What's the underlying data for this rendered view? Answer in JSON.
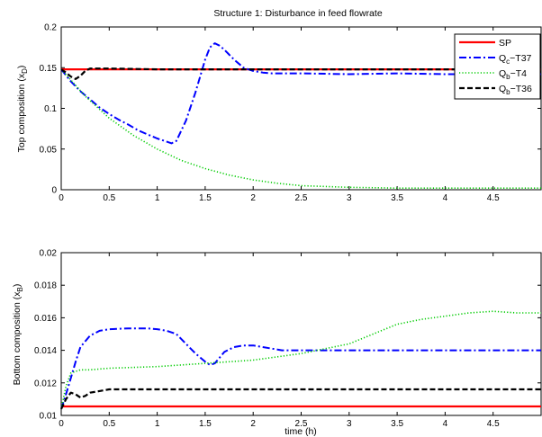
{
  "chart_data": [
    {
      "type": "line",
      "title": "Structure 1: Disturbance in feed flowrate",
      "xlabel": "",
      "ylabel": "Top composition (x_D)",
      "xlim": [
        0,
        5
      ],
      "ylim": [
        0,
        0.2
      ],
      "xticks": [
        "0",
        "0.5",
        "1",
        "1.5",
        "2",
        "2.5",
        "3",
        "3.5",
        "4",
        "4.5"
      ],
      "yticks": [
        "0",
        "0.05",
        "0.1",
        "0.15",
        "0.2"
      ],
      "grid": false,
      "legend_position": "top-right",
      "series": [
        {
          "name": "SP",
          "color": "#ff0000",
          "style": "solid",
          "x": [
            0,
            5
          ],
          "y": [
            0.148,
            0.148
          ]
        },
        {
          "name": "Q_c-T37",
          "color": "#0000ff",
          "style": "dashdot",
          "x": [
            0,
            0.1,
            0.2,
            0.3,
            0.4,
            0.5,
            0.6,
            0.7,
            0.8,
            0.9,
            1.0,
            1.1,
            1.15,
            1.2,
            1.3,
            1.4,
            1.5,
            1.55,
            1.6,
            1.65,
            1.7,
            1.8,
            1.9,
            2.0,
            2.1,
            2.2,
            2.5,
            3.0,
            3.5,
            4.0,
            4.5,
            5.0
          ],
          "y": [
            0.148,
            0.133,
            0.121,
            0.111,
            0.101,
            0.093,
            0.086,
            0.08,
            0.073,
            0.068,
            0.063,
            0.059,
            0.057,
            0.06,
            0.085,
            0.12,
            0.16,
            0.175,
            0.18,
            0.177,
            0.172,
            0.16,
            0.15,
            0.146,
            0.144,
            0.143,
            0.143,
            0.142,
            0.143,
            0.142,
            0.142,
            0.142
          ]
        },
        {
          "name": "Q_b-T4",
          "color": "#00cc00",
          "style": "dotted",
          "x": [
            0,
            0.25,
            0.5,
            0.75,
            1.0,
            1.25,
            1.5,
            1.75,
            2.0,
            2.25,
            2.5,
            2.75,
            3.0,
            3.5,
            4.0,
            4.5,
            5.0
          ],
          "y": [
            0.148,
            0.115,
            0.088,
            0.067,
            0.05,
            0.036,
            0.026,
            0.018,
            0.012,
            0.008,
            0.005,
            0.004,
            0.003,
            0.002,
            0.002,
            0.002,
            0.002
          ]
        },
        {
          "name": "Q_b-T36",
          "color": "#000000",
          "style": "dashed",
          "x": [
            0,
            0.05,
            0.1,
            0.15,
            0.2,
            0.25,
            0.3,
            0.5,
            1.0,
            1.5,
            2.0,
            2.5,
            3.0,
            3.5,
            4.0,
            4.5,
            5.0
          ],
          "y": [
            0.148,
            0.144,
            0.139,
            0.136,
            0.14,
            0.146,
            0.149,
            0.149,
            0.148,
            0.148,
            0.148,
            0.148,
            0.148,
            0.148,
            0.148,
            0.148,
            0.148
          ]
        }
      ]
    },
    {
      "type": "line",
      "title": "",
      "xlabel": "time (h)",
      "ylabel": "Bottom composition (x_B)",
      "xlim": [
        0,
        5
      ],
      "ylim": [
        0.01,
        0.02
      ],
      "xticks": [
        "0",
        "0.5",
        "1",
        "1.5",
        "2",
        "2.5",
        "3",
        "3.5",
        "4",
        "4.5"
      ],
      "yticks": [
        "0.01",
        "0.012",
        "0.014",
        "0.016",
        "0.018",
        "0.02"
      ],
      "grid": false,
      "series": [
        {
          "name": "SP",
          "color": "#ff0000",
          "style": "solid",
          "x": [
            0,
            5
          ],
          "y": [
            0.01055,
            0.01055
          ]
        },
        {
          "name": "Q_c-T37",
          "color": "#0000ff",
          "style": "dashdot",
          "x": [
            0,
            0.05,
            0.1,
            0.15,
            0.2,
            0.3,
            0.4,
            0.5,
            0.7,
            0.9,
            1.0,
            1.1,
            1.2,
            1.3,
            1.4,
            1.5,
            1.55,
            1.6,
            1.7,
            1.8,
            1.9,
            2.0,
            2.1,
            2.2,
            2.3,
            2.5,
            3.0,
            3.5,
            4.0,
            4.5,
            5.0
          ],
          "y": [
            0.0104,
            0.0113,
            0.0123,
            0.0133,
            0.0142,
            0.0149,
            0.0152,
            0.0153,
            0.01535,
            0.01535,
            0.0153,
            0.0152,
            0.015,
            0.0144,
            0.0138,
            0.0133,
            0.0131,
            0.0132,
            0.0139,
            0.0142,
            0.0143,
            0.0143,
            0.0142,
            0.0141,
            0.014,
            0.014,
            0.014,
            0.014,
            0.014,
            0.014,
            0.014
          ]
        },
        {
          "name": "Q_b-T4",
          "color": "#00cc00",
          "style": "dotted",
          "x": [
            0,
            0.05,
            0.1,
            0.2,
            0.3,
            0.5,
            1.0,
            1.5,
            2.0,
            2.5,
            3.0,
            3.25,
            3.5,
            3.75,
            4.0,
            4.25,
            4.5,
            4.75,
            5.0
          ],
          "y": [
            0.0104,
            0.0118,
            0.0126,
            0.0128,
            0.0128,
            0.0129,
            0.013,
            0.0132,
            0.0134,
            0.0138,
            0.0144,
            0.015,
            0.0156,
            0.0159,
            0.0161,
            0.0163,
            0.0164,
            0.0163,
            0.0163
          ]
        },
        {
          "name": "Q_b-T36",
          "color": "#000000",
          "style": "dashed",
          "x": [
            0,
            0.05,
            0.1,
            0.15,
            0.2,
            0.25,
            0.3,
            0.4,
            0.5,
            1.0,
            1.5,
            2.0,
            2.5,
            3.0,
            3.5,
            4.0,
            4.5,
            5.0
          ],
          "y": [
            0.0104,
            0.011,
            0.0114,
            0.0113,
            0.0111,
            0.0112,
            0.0114,
            0.0115,
            0.0116,
            0.0116,
            0.0116,
            0.0116,
            0.0116,
            0.0116,
            0.0116,
            0.0116,
            0.0116,
            0.0116
          ]
        }
      ]
    }
  ]
}
